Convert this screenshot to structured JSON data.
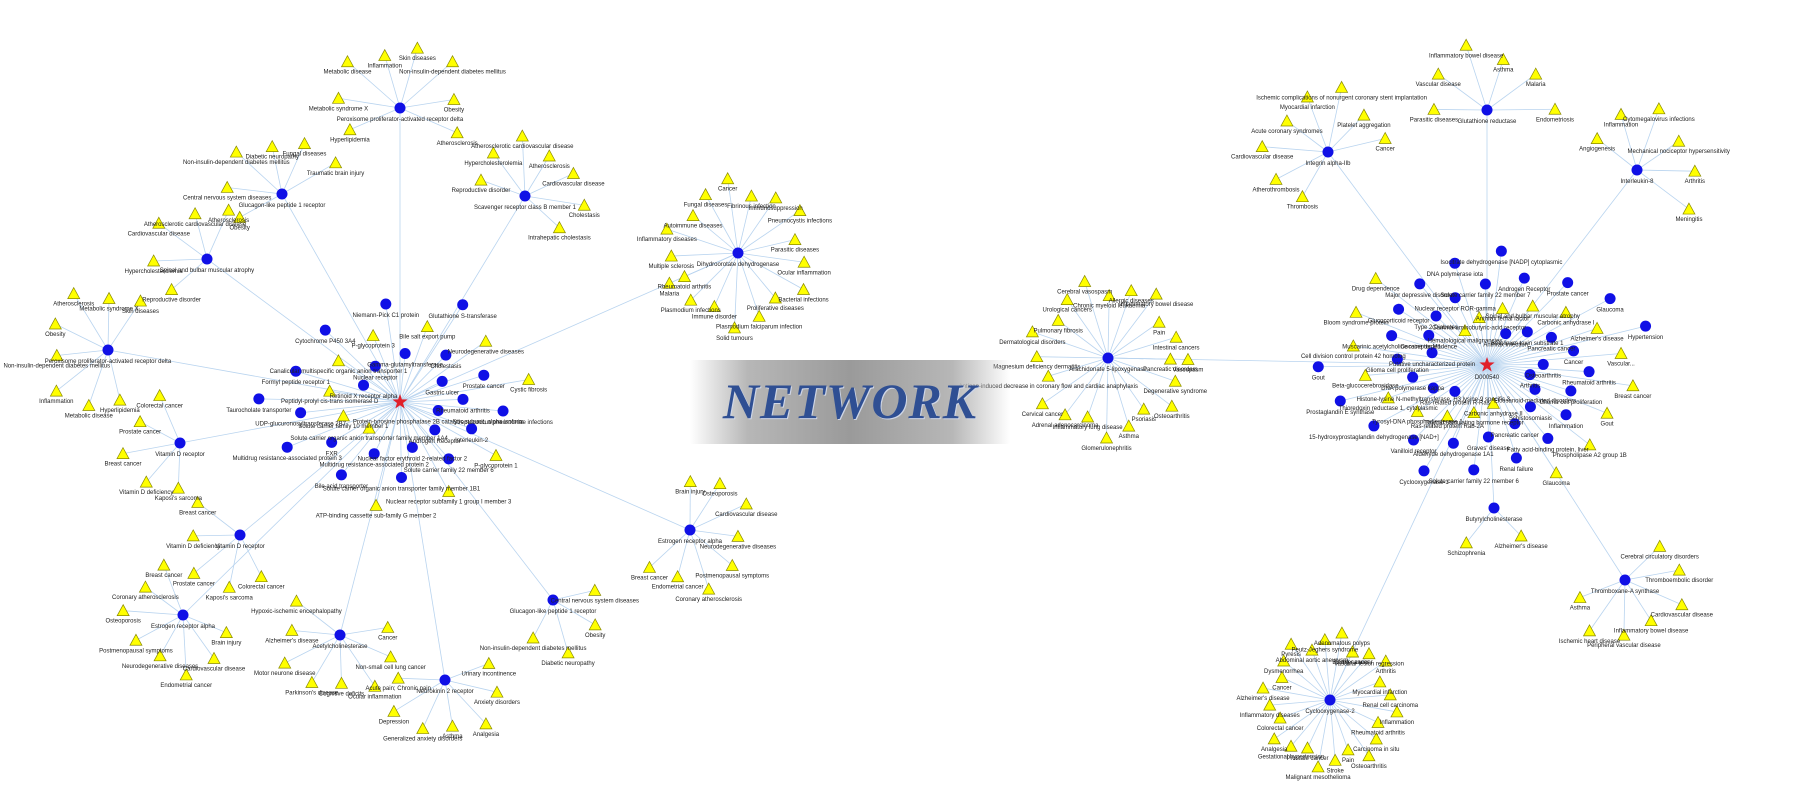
{
  "banner": {
    "title": "NETWORK"
  },
  "colors": {
    "target_node": "#1010e6",
    "disease_node": "#ffff00",
    "drug_node": "#e0202a",
    "edge": "#b9d4ef"
  },
  "networks": [
    {
      "drug": {
        "label": ""
      },
      "targets": [
        {
          "label": "Peroxisome proliferator-activated receptor delta",
          "diseases": [
            "Hyperlipidemia",
            "Metabolic syndrome X",
            "Metabolic disease",
            "Inflammation",
            "Skin diseases",
            "Non-insulin-dependent diabetes mellitus",
            "Obesity",
            "Atherosclerosis"
          ]
        },
        {
          "label": "Glucagon-like peptide 1 receptor",
          "diseases": [
            "Obesity",
            "Central nervous system diseases",
            "Non-insulin-dependent diabetes mellitus",
            "Diabetic neuropathy",
            "Fungal diseases",
            "Traumatic brain injury"
          ]
        },
        {
          "label": "Scavenger receptor class B member 1",
          "diseases": [
            "Reproductive disorder",
            "Hypercholesterolemia",
            "Atherosclerotic cardiovascular disease",
            "Atherosclerosis",
            "Cardiovascular disease",
            "Cholestasis",
            "Intrahepatic cholestasis"
          ]
        },
        {
          "label": "Spinal and bulbar muscular atrophy",
          "diseases": [
            "Reproductive disorder",
            "Hypercholesterolemia",
            "Cardiovascular disease",
            "Atherosclerotic cardiovascular disease",
            "Atherosclerosis"
          ]
        },
        {
          "label": "Peroxisome proliferator-activated receptor delta",
          "diseases": [
            "Hyperlipidemia",
            "Metabolic disease",
            "Inflammation",
            "Non-insulin-dependent diabetes mellitus",
            "Obesity",
            "Atherosclerosis",
            "Metabolic syndrome X",
            "Skin diseases"
          ]
        },
        {
          "label": "Dihydroorotate dehydrogenase",
          "diseases": [
            "Rheumatoid arthritis",
            "Multiple sclerosis",
            "Inflammatory diseases",
            "Autoimmune diseases",
            "Fungal diseases",
            "Cancer",
            "Fibrinous infection",
            "Immunosuppression",
            "Pneumocystis infections",
            "Parasitic diseases",
            "Ocular inflammation",
            "Bacterial infections",
            "Proliferative diseases",
            "Plasmodium falciparum infection",
            "Solid tumours",
            "Immune disorder",
            "Plasmodium infections",
            "Malaria"
          ]
        },
        {
          "label": "Vitamin D receptor",
          "diseases": [
            "Kaposi's sarcoma",
            "Vitamin D deficiency",
            "Breast cancer",
            "Prostate cancer",
            "Colorectal cancer"
          ]
        },
        {
          "label": "Vitamin D receptor",
          "diseases": [
            "Colorectal cancer",
            "Kaposi's sarcoma",
            "Prostate cancer",
            "Vitamin D deficiency",
            "Breast cancer"
          ]
        },
        {
          "label": "Estrogen receptor alpha",
          "diseases": [
            "Brain injury",
            "Osteoporosis",
            "Cardiovascular disease",
            "Neurodegenerative diseases",
            "Postmenopausal symptoms",
            "Coronary atherosclerosis",
            "Endometrial cancer",
            "Breast cancer"
          ]
        },
        {
          "label": "Acetylcholinesterase",
          "diseases": [
            "Cancer",
            "Non-small cell lung cancer",
            "Ocular inflammation",
            "Cognitive deficits",
            "Parkinson's disease",
            "Motor neurone disease",
            "Alzheimer's disease",
            "Hypoxic-ischemic encephalopathy"
          ]
        },
        {
          "label": "Neurokinin 2 receptor",
          "diseases": [
            "Urinary incontinence",
            "Anxiety disorders",
            "Analgesia",
            "Asthma",
            "Generalized anxiety disorders",
            "Depression",
            "Acute pain; Chronic pain"
          ]
        },
        {
          "label": "Glucagon-like peptide 1 receptor",
          "diseases": [
            "Central nervous system diseases",
            "Obesity",
            "Diabetic neuropathy",
            "Non-insulin-dependent diabetes mellitus"
          ]
        },
        {
          "label": "Estrogen receptor alpha",
          "diseases": [
            "Brain injury",
            "Cardiovascular disease",
            "Endometrial cancer",
            "Neurodegenerative diseases",
            "Postmenopausal symptoms",
            "Osteoporosis",
            "Coronary atherosclerosis",
            "Breast cancer"
          ]
        }
      ],
      "inner_labels": [
        "Protein-tyrosine phosphatase 2B catalytic subunit, alpha isoform",
        "Interleukin-2",
        "P-glycoprotein 1",
        "Androgen Receptor",
        "Solute carrier family 22 member 6",
        "Nuclear receptor subfamily 1 group I member 3",
        "Nuclear factor erythroid 2-related factor 2",
        "Solute carrier organic anion transporter family member 1B1",
        "ATP-binding cassette sub-family G member 2",
        "Multidrug resistance-associated protein 2",
        "Bile acid transporter",
        "Solute carrier organic anion transporter family member 1A4",
        "FXR",
        "Multidrug resistance-associated protein 3",
        "Solute carrier family 10 member 1",
        "UDP-glucuronosyltransferase 2B7",
        "Taurocholate transporter",
        "Peptidyl-prolyl cis-trans isomerase D",
        "Formyl peptide receptor 1",
        "Retinoid X receptor alpha",
        "Canalicular multispecific organic anion transporter 1",
        "Cytochrome P450 3A4",
        "Nuclear receptor",
        "P-glycoprotein 3",
        "Niemann-Pick C1 protein",
        "Gamma-glutamyltransferase",
        "Bile salt export pump",
        "Glutathione S-transferase",
        "Cholestasis",
        "Neurodegenerative diseases",
        "Gastric ulcer",
        "Prostate cancer",
        "Cystic fibrosis",
        "Rheumatoid arthritis",
        "Streptococcus pneumoniae infections"
      ]
    },
    {
      "drug": {
        "label": "D000540"
      },
      "targets": [
        {
          "label": "Glutathione reductase",
          "diseases": [
            "Parasitic diseases",
            "Vascular disease",
            "Inflammatory bowel disease",
            "Asthma",
            "Malaria",
            "Endometriosis"
          ]
        },
        {
          "label": "Integrin alpha-IIb",
          "diseases": [
            "Thrombosis",
            "Atherothrombosis",
            "Cardiovascular disease",
            "Acute coronary syndromes",
            "Myocardial infarction",
            "Ischemic complications of nonurgent coronary stent implantation",
            "Platelet aggregation",
            "Cancer"
          ]
        },
        {
          "label": "Interleukin-8",
          "diseases": [
            "Angiogenesis",
            "Inflammation",
            "Cytomegalovirus infections",
            "Mechanical nociceptor hypersensitivity",
            "Arthritis",
            "Meningitis"
          ]
        },
        {
          "label": "Arachidonate 5-lipoxygenase",
          "diseases": [
            "Pancreatic disorders",
            "Degenerative syndrome",
            "Osteoarthritis",
            "Psoriasis",
            "Asthma",
            "Glomerulonephritis",
            "Inflammatory lung disease",
            "Adrenal adenocarcinoma",
            "Cervical cancer",
            "Antigen-induced decrease in coronary flow and cardiac anaphylaxis",
            "Magnesium deficiency dermatitis",
            "Dermatological disorders",
            "Pulmonary fibrosis",
            "Urological cancers",
            "Cerebral vasospasm",
            "Chronic myeloid leukaemia",
            "Allergic diseases",
            "Inflammatory bowel disease",
            "Pain",
            "Intestinal cancers",
            "Vasospasm"
          ]
        },
        {
          "label": "Butyrylcholinesterase",
          "diseases": [
            "Alzheimer's disease",
            "Schizophrenia"
          ]
        },
        {
          "label": "Thromboxane-A synthase",
          "diseases": [
            "Cerebral circulatory disorders",
            "Thromboembolic disorder",
            "Cardiovascular disease",
            "Inflammatory bowel disease",
            "Peripheral vascular disease",
            "Ischemic heart disease",
            "Asthma"
          ]
        },
        {
          "label": "Cyclooxygenase-2",
          "diseases": [
            "Bladder cancer",
            "Vascular lesion regression",
            "Arthritis",
            "Myocardial infarction",
            "Renal cell carcinoma",
            "Inflammation",
            "Rheumatoid arthritis",
            "Carcinoma in situ",
            "Osteoarthritis",
            "Pain",
            "Stroke",
            "Malignant mesothelioma",
            "Prostate cancer",
            "Gestational hypertension",
            "Analgesia",
            "Colorectal cancer",
            "Inflammatory diseases",
            "Alzheimer's disease",
            "Cancer",
            "Dysmenorrhea",
            "Pyresis",
            "Abdominal aortic aneurysm",
            "Peutz-Jeghers syndrome",
            "Adenomatous polyps",
            "Lung cancer"
          ]
        }
      ],
      "inner_labels": [
        "Arthritis",
        "Glioma cell proliferation",
        "Gout",
        "Eicosanoid-mediated disorders",
        "Inflammation",
        "Phospholipase A2 group 1B",
        "Schistosomiasis",
        "Fatty acid-binding protein, liver",
        "Glaucoma",
        "Pancreatic cancer",
        "Renal failure",
        "Carbonic anhydrase II",
        "Graves' disease",
        "Solute carrier family 22 member 6",
        "Thyroid stimulating hormone receptor",
        "Aldehyde dehydrogenase 1A1",
        "Cyclooxygenase-1",
        "Ras-related protein Rab-2A",
        "Vanilloid receptor",
        "Ras-related protein R-Ras",
        "Tyrosyl-DNA phosphodiesterase 1",
        "15-hydroxyprostaglandin dehydrogenase [NAD+]",
        "Histone-lysine N-methyltransferase, H3 lysine-9 specific 3",
        "Thioredoxin reductase 1, cytoplasmic",
        "Prostaglandin E synthase",
        "DNA polymerase kappa",
        "Beta-glucocerebrosidase",
        "Gout",
        "Glioma cell proliferation",
        "Cell division control protein 42 homolog",
        "Putative uncharacterized protein",
        "Muscarinic acetylcholine receptor M1",
        "Bloom syndrome protein",
        "Cocaine dependence",
        "Glucocorticoid receptor",
        "Drug dependence",
        "Type 2 Diabetes",
        "Major depressive disorder",
        "Hematological malignancies",
        "Nuclear receptor ROR-gamma",
        "DNA polymerase iota",
        "Gamma-aminobutyric-acid receptor",
        "Solute carrier family 22 member 7",
        "Isocitrate dehydrogenase [NADP] cytoplasmic",
        "Anthrax lethal factor",
        "Androgen Receptor",
        "Anthrax infection",
        "Spinal and bulbar muscular atrophy",
        "Prostate cancer",
        "Botulinum toxin substrate 1",
        "Carbonic anhydrase I",
        "Glaucoma",
        "Pancreatic cancer",
        "Alzheimer's disease",
        "Hypertension",
        "Cancer",
        "Vascular...",
        "Osteoarthritis",
        "Rheumatoid arthritis",
        "Breast cancer"
      ]
    }
  ]
}
